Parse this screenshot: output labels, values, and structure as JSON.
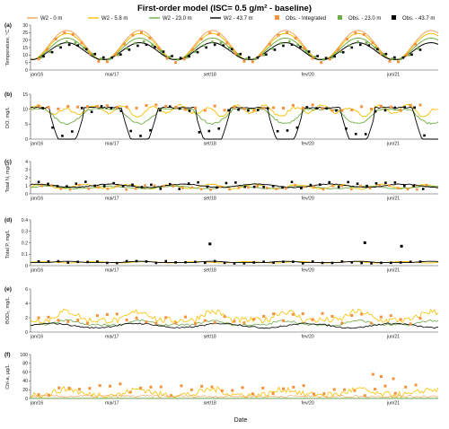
{
  "figure_title": "First-order model (ISC= 0.5 g/m² - baseline)",
  "x_axis_label": "Date",
  "x_tick_labels": [
    "jan/16",
    "mai/17",
    "set/18",
    "fev/20",
    "jun/21"
  ],
  "legend": [
    {
      "label": "W2 - 0 m",
      "kind": "line",
      "color": "#f4a460"
    },
    {
      "label": "W2 - 5.8 m",
      "kind": "line",
      "color": "#f5c000"
    },
    {
      "label": "W2 - 23.0 m",
      "kind": "line",
      "color": "#70ad47"
    },
    {
      "label": "W2 - 43.7 m",
      "kind": "line",
      "color": "#000000"
    },
    {
      "label": "Obs. - Integrated",
      "kind": "marker",
      "color": "#f4913c"
    },
    {
      "label": "Obs. - 23.0 m",
      "kind": "marker",
      "color": "#70ad47"
    },
    {
      "label": "Obs. - 43.7 m",
      "kind": "marker",
      "color": "#000000"
    }
  ],
  "chart_data": [
    {
      "panel": "(a)",
      "type": "line",
      "ylabel": "Temperature, °C",
      "ylim": [
        0,
        30
      ],
      "yticks": [
        0,
        5,
        10,
        15,
        20,
        25,
        30
      ],
      "x": [
        "jan/16",
        "mai/17",
        "set/18",
        "fev/20",
        "jun/21"
      ],
      "series": [
        {
          "name": "W2 - 0 m",
          "summer_peak": 26,
          "winter_min": 7
        },
        {
          "name": "W2 - 5.8 m",
          "summer_peak": 24,
          "winter_min": 7
        },
        {
          "name": "W2 - 23.0 m",
          "summer_peak": 21,
          "winter_min": 7
        },
        {
          "name": "W2 - 43.7 m",
          "summer_peak": 18,
          "winter_min": 7
        }
      ]
    },
    {
      "panel": "(b)",
      "type": "line",
      "ylabel": "DO, mg/L",
      "ylim": [
        0,
        15
      ],
      "yticks": [
        0,
        5,
        10,
        15
      ],
      "series": [
        {
          "name": "W2 - 0 m",
          "range": [
            8,
            12
          ]
        },
        {
          "name": "W2 - 43.7 m",
          "range": [
            0,
            11
          ]
        }
      ]
    },
    {
      "panel": "(c)",
      "type": "line",
      "ylabel": "Total N, mg/L",
      "ylim": [
        0,
        4
      ],
      "yticks": [
        0,
        1,
        2,
        3,
        4
      ],
      "series": [
        {
          "name": "W2 - 43.7 m",
          "range": [
            0.5,
            1.3
          ]
        }
      ]
    },
    {
      "panel": "(d)",
      "type": "line",
      "ylabel": "Total P, mg/L",
      "ylim": [
        0,
        0.4
      ],
      "yticks": [
        0,
        0.1,
        0.2,
        0.3,
        0.4
      ],
      "series": [
        {
          "name": "W2 - 43.7 m",
          "range": [
            0.02,
            0.05
          ]
        }
      ],
      "obs_peaks": [
        0.19,
        0.2,
        0.17
      ]
    },
    {
      "panel": "(e)",
      "type": "line",
      "ylabel": "BOD₅, mg/L",
      "ylim": [
        0,
        6
      ],
      "yticks": [
        0,
        2,
        4,
        6
      ],
      "series": [
        {
          "name": "W2 - 5.8 m",
          "range": [
            0.5,
            3
          ]
        }
      ]
    },
    {
      "panel": "(f)",
      "type": "line",
      "ylabel": "Chl-a, µg/L",
      "ylim": [
        0,
        100
      ],
      "yticks": [
        0,
        20,
        40,
        60,
        80,
        100
      ],
      "series": [
        {
          "name": "W2 - 5.8 m",
          "range": [
            0,
            40
          ]
        }
      ],
      "obs_peaks": [
        55,
        50,
        45
      ]
    }
  ]
}
